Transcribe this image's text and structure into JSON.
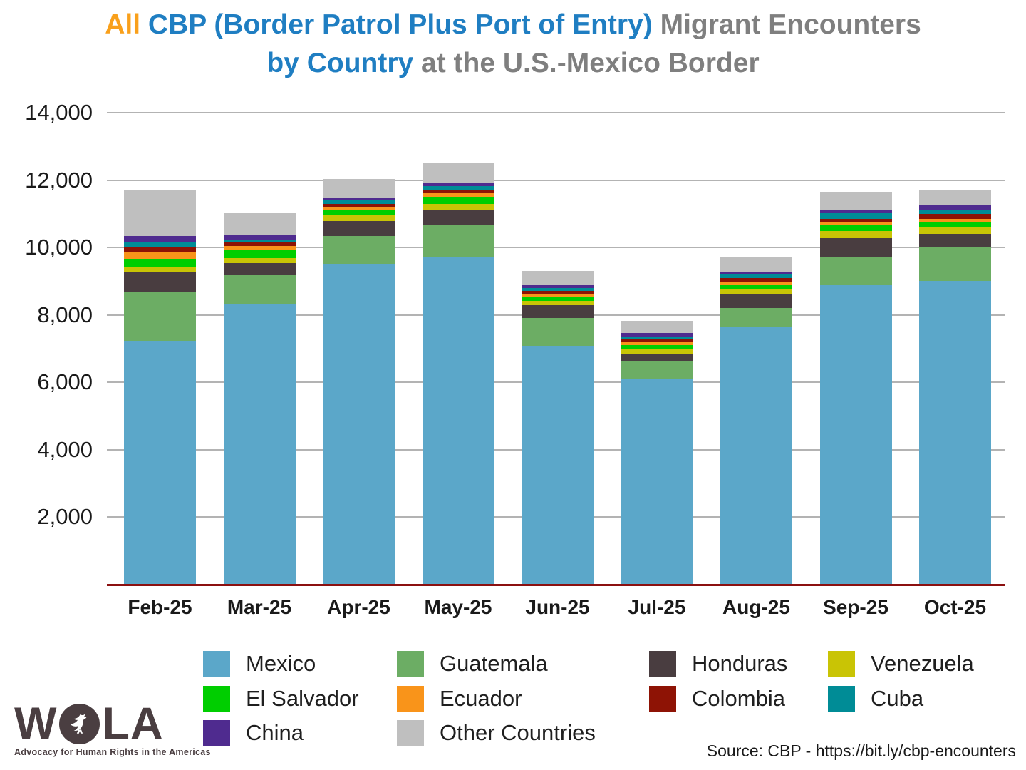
{
  "title": {
    "line1": [
      {
        "text": "All ",
        "color": "#F9A01B"
      },
      {
        "text": "CBP (Border Patrol Plus Port of Entry) ",
        "color": "#1F7EC2"
      },
      {
        "text": "Migrant Encounters",
        "color": "#7F7F7F"
      }
    ],
    "line2": [
      {
        "text": "by Country ",
        "color": "#1F7EC2"
      },
      {
        "text": "at the U.S.-Mexico Border",
        "color": "#7F7F7F"
      }
    ]
  },
  "chart_data": {
    "type": "bar",
    "stacked": true,
    "title": "All CBP (Border Patrol Plus Port of Entry) Migrant Encounters by Country at the U.S.-Mexico Border",
    "categories": [
      "Feb-25",
      "Mar-25",
      "Apr-25",
      "May-25",
      "Jun-25",
      "Jul-25",
      "Aug-25",
      "Sep-25",
      "Oct-25"
    ],
    "series": [
      {
        "name": "Mexico",
        "color": "#5BA7C9",
        "values": [
          7240,
          8340,
          9520,
          9710,
          7095,
          6105,
          7650,
          8885,
          9010
        ]
      },
      {
        "name": "Guatemala",
        "color": "#6CAD64",
        "values": [
          1460,
          830,
          830,
          965,
          820,
          520,
          550,
          825,
          985
        ]
      },
      {
        "name": "Honduras",
        "color": "#493D40",
        "values": [
          560,
          375,
          445,
          425,
          380,
          210,
          405,
          565,
          410
        ]
      },
      {
        "name": "Venezuela",
        "color": "#C9C405",
        "values": [
          160,
          140,
          165,
          190,
          115,
          140,
          165,
          210,
          190
        ]
      },
      {
        "name": "El Salvador",
        "color": "#00CE00",
        "values": [
          240,
          225,
          155,
          190,
          140,
          140,
          120,
          185,
          165
        ]
      },
      {
        "name": "Ecuador",
        "color": "#F9941A",
        "values": [
          210,
          130,
          95,
          125,
          85,
          90,
          95,
          70,
          90
        ]
      },
      {
        "name": "Colombia",
        "color": "#8E1305",
        "values": [
          160,
          135,
          85,
          85,
          85,
          95,
          120,
          120,
          155
        ]
      },
      {
        "name": "Cuba",
        "color": "#008C96",
        "values": [
          120,
          60,
          105,
          140,
          70,
          70,
          105,
          160,
          130
        ]
      },
      {
        "name": "China",
        "color": "#4F2B8F",
        "values": [
          185,
          120,
          70,
          70,
          90,
          100,
          85,
          100,
          120
        ]
      },
      {
        "name": "Other Countries",
        "color": "#BFBFBF",
        "values": [
          1365,
          655,
          565,
          590,
          430,
          355,
          440,
          525,
          465
        ]
      }
    ],
    "totals": [
      11700,
      11010,
      12035,
      12490,
      9310,
      7825,
      9735,
      11645,
      11720
    ],
    "xlabel": "",
    "ylabel": "",
    "ylim": [
      0,
      14000
    ],
    "yticks": [
      2000,
      4000,
      6000,
      8000,
      10000,
      12000,
      14000
    ],
    "ytick_labels": [
      "2,000",
      "4,000",
      "6,000",
      "8,000",
      "10,000",
      "12,000",
      "14,000"
    ],
    "grid": true,
    "legend_position": "bottom"
  },
  "colors": {
    "gridline": "#B3B3B3",
    "baseline": "#8B1010",
    "axis_text": "#1A1A1A",
    "legend_text": "#1F1F1F",
    "logo": "#4A3E41"
  },
  "footer": {
    "logo": {
      "letters_before": "W",
      "letters_after": "LA",
      "tagline": "Advocacy for Human Rights in the Americas"
    },
    "source": "Source: CBP - https://bit.ly/cbp-encounters"
  }
}
